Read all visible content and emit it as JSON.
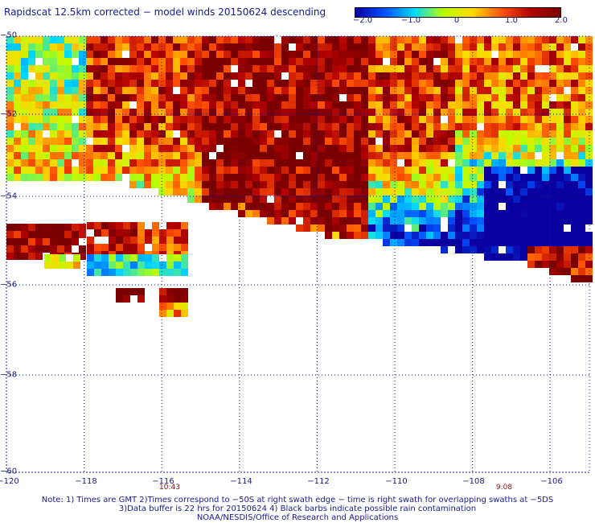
{
  "title": "Rapidscat 12.5km corrected − model winds 20150624 descending",
  "colorbar": {
    "labels": [
      "−2.0",
      "−1.0",
      "0",
      "1.0",
      "2.0"
    ],
    "range": [
      -2.0,
      2.0
    ],
    "colors": [
      "#0a00a0",
      "#0050ff",
      "#00d8ff",
      "#b8ff00",
      "#ffd800",
      "#ff5000",
      "#b00000",
      "#7a0000"
    ]
  },
  "map": {
    "lon_ticks": [
      "−120",
      "−118",
      "−116",
      "−114",
      "−112",
      "−110",
      "−108",
      "−106"
    ],
    "lat_ticks": [
      "−50",
      "−52",
      "−54",
      "−56",
      "−58",
      "−60"
    ],
    "lon_range": [
      -120,
      -105.5
    ],
    "lat_range": [
      -60,
      -50
    ],
    "time_labels": [
      {
        "text": "10:43",
        "lon": -115.8
      },
      {
        "text": "9:08",
        "lon": -107.3
      }
    ]
  },
  "notes": [
    "Note: 1) Times are GMT 2)Times correspond to −50S at right swath edge − time is right swath for overlapping swaths at −5DS",
    "3)Data buffer is 22 hrs for 20150624 4) Black barbs indicate possible rain contamination",
    "NOAA/NESDIS/Office of Research and Applications"
  ]
}
